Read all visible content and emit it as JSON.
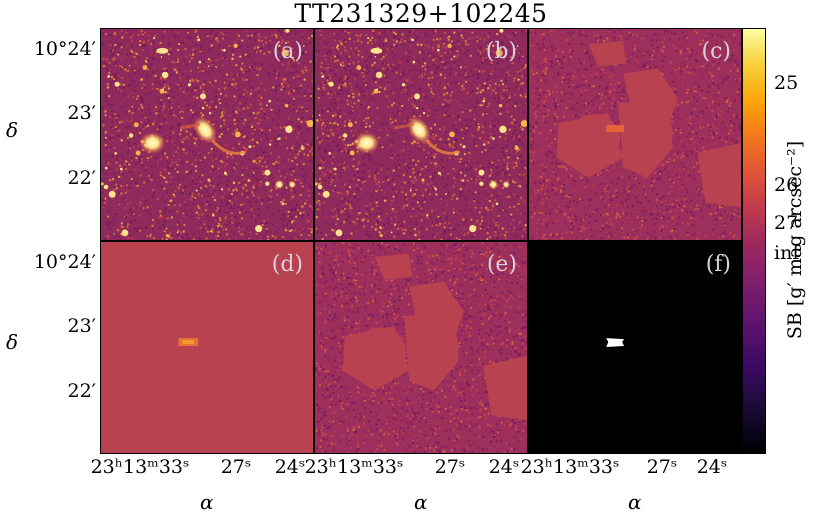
{
  "title": "TT231329+102245",
  "panels": [
    {
      "label": "(a)",
      "kind": "data"
    },
    {
      "label": "(b)",
      "kind": "data"
    },
    {
      "label": "(c)",
      "kind": "residual"
    },
    {
      "label": "(d)",
      "kind": "model"
    },
    {
      "label": "(e)",
      "kind": "residual"
    },
    {
      "label": "(f)",
      "kind": "mask"
    }
  ],
  "y_ticks": [
    "10°24′",
    "23′",
    "22′"
  ],
  "x_ticks": [
    "23ʰ13ᵐ33ˢ",
    "27ˢ",
    "24ˢ"
  ],
  "y_axis_label": "δ",
  "x_axis_label": "α",
  "colorbar": {
    "label": "SB [g′ mag arcsec⁻²]",
    "ticks": [
      "25",
      "26",
      "27",
      "inf"
    ],
    "colormap": "inferno",
    "colors": {
      "bright": "#fcffa4",
      "mid": "#c13b4c",
      "dark": "#000004"
    }
  }
}
